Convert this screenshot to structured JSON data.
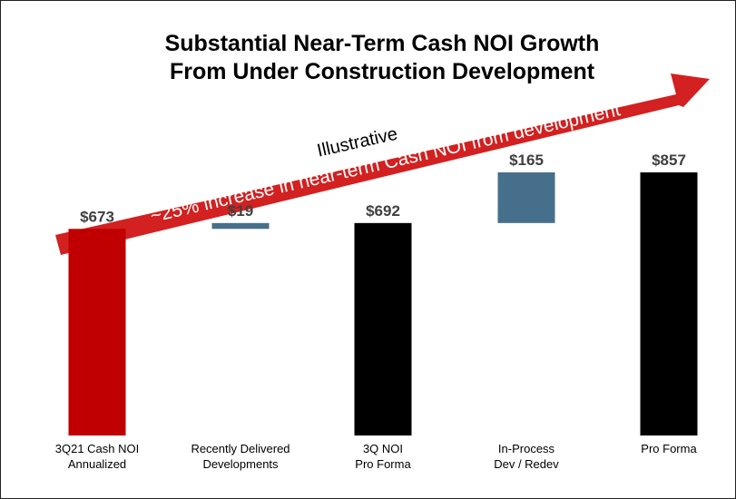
{
  "chart_data": {
    "type": "bar",
    "subtype": "waterfall",
    "title": [
      "Substantial Near-Term Cash NOI Growth",
      "From Under Construction Development"
    ],
    "xlabel": "",
    "ylabel": "",
    "ylim": [
      0,
      900
    ],
    "grid": false,
    "legend": "none",
    "annotation": "~25% increase in near-term Cash NOI from development",
    "note": "Illustrative",
    "categories": [
      [
        "3Q21 Cash NOI",
        "Annualized"
      ],
      [
        "Recently Delivered",
        "Developments"
      ],
      [
        "3Q NOI",
        "Pro Forma"
      ],
      [
        "In-Process",
        "Dev / Redev"
      ],
      [
        "Pro Forma"
      ]
    ],
    "bars": [
      {
        "kind": "total",
        "start": 0,
        "end": 673,
        "value": 673,
        "label": "$673",
        "color": "#c00000"
      },
      {
        "kind": "increment",
        "start": 673,
        "end": 692,
        "value": 19,
        "label": "$19",
        "color": "#466f8c"
      },
      {
        "kind": "total",
        "start": 0,
        "end": 692,
        "value": 692,
        "label": "$692",
        "color": "#000000"
      },
      {
        "kind": "increment",
        "start": 692,
        "end": 857,
        "value": 165,
        "label": "$165",
        "color": "#466f8c"
      },
      {
        "kind": "total",
        "start": 0,
        "end": 857,
        "value": 857,
        "label": "$857",
        "color": "#000000"
      }
    ],
    "arrow_color": "#d32020"
  }
}
